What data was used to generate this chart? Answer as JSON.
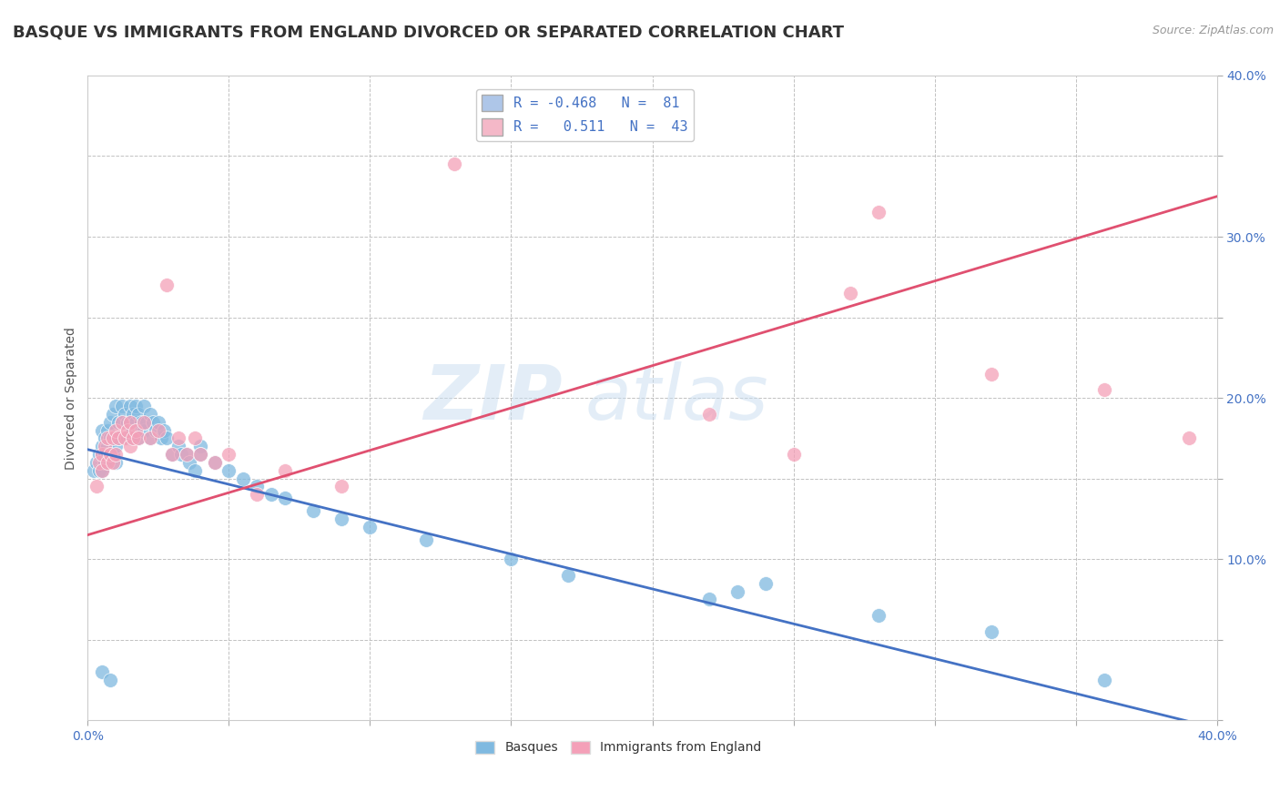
{
  "title": "BASQUE VS IMMIGRANTS FROM ENGLAND DIVORCED OR SEPARATED CORRELATION CHART",
  "source_text": "Source: ZipAtlas.com",
  "ylabel": "Divorced or Separated",
  "xlim": [
    0.0,
    0.4
  ],
  "ylim": [
    0.0,
    0.4
  ],
  "legend_entries": [
    {
      "label": "R = -0.468   N =  81",
      "color": "#aec6e8"
    },
    {
      "label": "R =   0.511   N =  43",
      "color": "#f4b8c8"
    }
  ],
  "blue_color": "#7fb9e0",
  "pink_color": "#f4a0b8",
  "blue_line_color": "#4472c4",
  "pink_line_color": "#e05070",
  "watermark_zip": "ZIP",
  "watermark_atlas": "atlas",
  "background_color": "#ffffff",
  "grid_color": "#bbbbbb",
  "title_fontsize": 13,
  "axis_label_fontsize": 10,
  "tick_fontsize": 10,
  "blue_line_x0": 0.0,
  "blue_line_y0": 0.168,
  "blue_line_x1": 0.4,
  "blue_line_y1": -0.005,
  "pink_line_x0": 0.0,
  "pink_line_y0": 0.115,
  "pink_line_x1": 0.4,
  "pink_line_y1": 0.325,
  "blue_points": [
    [
      0.002,
      0.155
    ],
    [
      0.003,
      0.16
    ],
    [
      0.004,
      0.155
    ],
    [
      0.004,
      0.165
    ],
    [
      0.005,
      0.17
    ],
    [
      0.005,
      0.18
    ],
    [
      0.005,
      0.155
    ],
    [
      0.005,
      0.165
    ],
    [
      0.006,
      0.175
    ],
    [
      0.006,
      0.165
    ],
    [
      0.006,
      0.16
    ],
    [
      0.007,
      0.18
    ],
    [
      0.007,
      0.17
    ],
    [
      0.007,
      0.165
    ],
    [
      0.008,
      0.185
    ],
    [
      0.008,
      0.175
    ],
    [
      0.008,
      0.165
    ],
    [
      0.009,
      0.19
    ],
    [
      0.009,
      0.175
    ],
    [
      0.009,
      0.165
    ],
    [
      0.01,
      0.195
    ],
    [
      0.01,
      0.175
    ],
    [
      0.01,
      0.17
    ],
    [
      0.01,
      0.16
    ],
    [
      0.011,
      0.185
    ],
    [
      0.011,
      0.175
    ],
    [
      0.012,
      0.195
    ],
    [
      0.012,
      0.185
    ],
    [
      0.013,
      0.19
    ],
    [
      0.013,
      0.175
    ],
    [
      0.014,
      0.185
    ],
    [
      0.014,
      0.175
    ],
    [
      0.015,
      0.195
    ],
    [
      0.015,
      0.185
    ],
    [
      0.015,
      0.175
    ],
    [
      0.016,
      0.19
    ],
    [
      0.016,
      0.18
    ],
    [
      0.017,
      0.195
    ],
    [
      0.017,
      0.185
    ],
    [
      0.018,
      0.19
    ],
    [
      0.018,
      0.175
    ],
    [
      0.019,
      0.185
    ],
    [
      0.02,
      0.195
    ],
    [
      0.02,
      0.18
    ],
    [
      0.021,
      0.185
    ],
    [
      0.022,
      0.19
    ],
    [
      0.022,
      0.175
    ],
    [
      0.023,
      0.185
    ],
    [
      0.024,
      0.18
    ],
    [
      0.025,
      0.185
    ],
    [
      0.026,
      0.175
    ],
    [
      0.027,
      0.18
    ],
    [
      0.028,
      0.175
    ],
    [
      0.03,
      0.165
    ],
    [
      0.032,
      0.17
    ],
    [
      0.033,
      0.165
    ],
    [
      0.035,
      0.165
    ],
    [
      0.036,
      0.16
    ],
    [
      0.038,
      0.155
    ],
    [
      0.04,
      0.17
    ],
    [
      0.04,
      0.165
    ],
    [
      0.045,
      0.16
    ],
    [
      0.05,
      0.155
    ],
    [
      0.055,
      0.15
    ],
    [
      0.06,
      0.145
    ],
    [
      0.065,
      0.14
    ],
    [
      0.07,
      0.138
    ],
    [
      0.08,
      0.13
    ],
    [
      0.09,
      0.125
    ],
    [
      0.1,
      0.12
    ],
    [
      0.12,
      0.112
    ],
    [
      0.15,
      0.1
    ],
    [
      0.17,
      0.09
    ],
    [
      0.22,
      0.075
    ],
    [
      0.23,
      0.08
    ],
    [
      0.24,
      0.085
    ],
    [
      0.28,
      0.065
    ],
    [
      0.32,
      0.055
    ],
    [
      0.36,
      0.025
    ],
    [
      0.005,
      0.03
    ],
    [
      0.008,
      0.025
    ]
  ],
  "pink_points": [
    [
      0.003,
      0.145
    ],
    [
      0.004,
      0.16
    ],
    [
      0.005,
      0.165
    ],
    [
      0.005,
      0.155
    ],
    [
      0.006,
      0.17
    ],
    [
      0.007,
      0.175
    ],
    [
      0.007,
      0.16
    ],
    [
      0.008,
      0.165
    ],
    [
      0.009,
      0.175
    ],
    [
      0.009,
      0.16
    ],
    [
      0.01,
      0.18
    ],
    [
      0.01,
      0.165
    ],
    [
      0.011,
      0.175
    ],
    [
      0.012,
      0.185
    ],
    [
      0.013,
      0.175
    ],
    [
      0.014,
      0.18
    ],
    [
      0.015,
      0.185
    ],
    [
      0.015,
      0.17
    ],
    [
      0.016,
      0.175
    ],
    [
      0.017,
      0.18
    ],
    [
      0.018,
      0.175
    ],
    [
      0.02,
      0.185
    ],
    [
      0.022,
      0.175
    ],
    [
      0.025,
      0.18
    ],
    [
      0.028,
      0.27
    ],
    [
      0.03,
      0.165
    ],
    [
      0.032,
      0.175
    ],
    [
      0.035,
      0.165
    ],
    [
      0.038,
      0.175
    ],
    [
      0.04,
      0.165
    ],
    [
      0.045,
      0.16
    ],
    [
      0.05,
      0.165
    ],
    [
      0.06,
      0.14
    ],
    [
      0.07,
      0.155
    ],
    [
      0.09,
      0.145
    ],
    [
      0.13,
      0.345
    ],
    [
      0.22,
      0.19
    ],
    [
      0.25,
      0.165
    ],
    [
      0.27,
      0.265
    ],
    [
      0.28,
      0.315
    ],
    [
      0.32,
      0.215
    ],
    [
      0.36,
      0.205
    ],
    [
      0.39,
      0.175
    ]
  ]
}
